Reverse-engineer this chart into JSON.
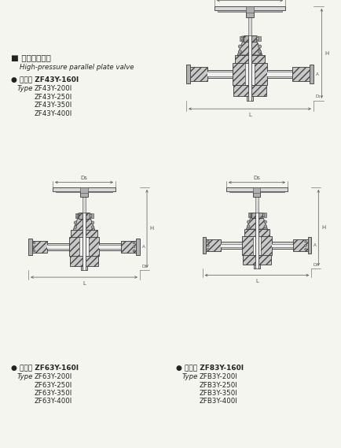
{
  "bg_color": "#e8e8e8",
  "paper_color": "#f5f5f0",
  "title_chinese": "■ 高压平板闸阀",
  "title_english": "High-pressure parallel plate valve",
  "section1_bullet": "●",
  "section1_label_cn": "型号： ZF43Y-160I",
  "section1_type": "Type",
  "section1_models": [
    "ZF43Y-200I",
    "ZF43Y-250I",
    "ZF43Y-350I",
    "ZF43Y-400I"
  ],
  "section2_bullet": "●",
  "section2_label_cn": "型号： ZF63Y-160I",
  "section2_type": "Type",
  "section2_models": [
    "ZF63Y-200I",
    "ZF63Y-250I",
    "ZF63Y-350I",
    "ZF63Y-400I"
  ],
  "section3_bullet": "●",
  "section3_label_cn": "型号： ZF83Y-160I",
  "section3_type": "Type",
  "section3_models": [
    "ZFB3Y-200I",
    "ZFB3Y-250I",
    "ZFB3Y-350I",
    "ZFB3Y-400I"
  ],
  "line_color": "#444444",
  "hatch_color": "#666666",
  "body_fill": "#c8c8c8",
  "light_fill": "#d8d8d8",
  "stem_fill": "#b0b0b0",
  "dark_fill": "#a0a0a0",
  "text_color": "#222222",
  "dim_color": "#555555",
  "white_fill": "#f0f0ee"
}
